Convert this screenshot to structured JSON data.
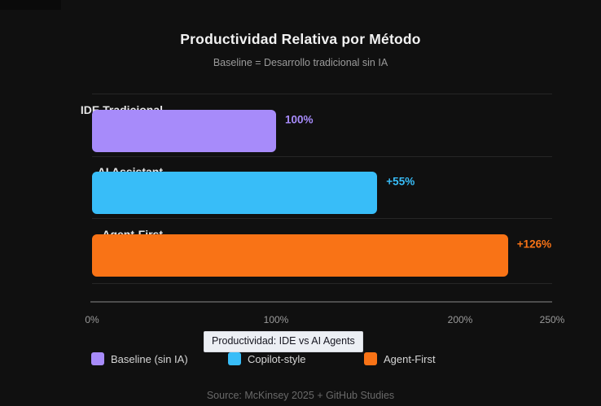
{
  "colors": {
    "background": "#101010",
    "baseline_purple": "#a78bfa",
    "copilot_blue": "#38bdf8",
    "agent_orange": "#f97316",
    "grid": "#262626",
    "axis": "#4d4d4d"
  },
  "header": {
    "title": "Productividad Relativa por Método",
    "subtitle": "Baseline = Desarrollo tradicional sin IA"
  },
  "chart_data": {
    "type": "bar",
    "orientation": "horizontal",
    "title": "Productividad Relativa por Método",
    "subtitle": "Baseline = Desarrollo tradicional sin IA",
    "categories": [
      "IDE Tradicional",
      "AI Assistant",
      "Agent-First"
    ],
    "values": [
      100,
      155,
      226
    ],
    "value_labels": [
      "100%",
      "+55%",
      "+126%"
    ],
    "bar_colors": [
      "#a78bfa",
      "#38bdf8",
      "#f97316"
    ],
    "xlabel": "",
    "ylabel": "",
    "xlim": [
      0,
      250
    ],
    "x_tick_values": [
      0,
      100,
      200,
      250
    ],
    "x_tick_labels": [
      "0%",
      "100%",
      "200%",
      "250%"
    ],
    "grid": true,
    "legend_position": "bottom"
  },
  "legend": {
    "items": [
      {
        "label": "Baseline (sin IA)",
        "color": "#a78bfa"
      },
      {
        "label": "Copilot-style",
        "color": "#38bdf8"
      },
      {
        "label": "Agent-First",
        "color": "#f97316"
      }
    ]
  },
  "tooltip": {
    "text": "Productividad: IDE vs AI Agents"
  },
  "footer": {
    "source": "Source: McKinsey 2025 + GitHub Studies"
  }
}
